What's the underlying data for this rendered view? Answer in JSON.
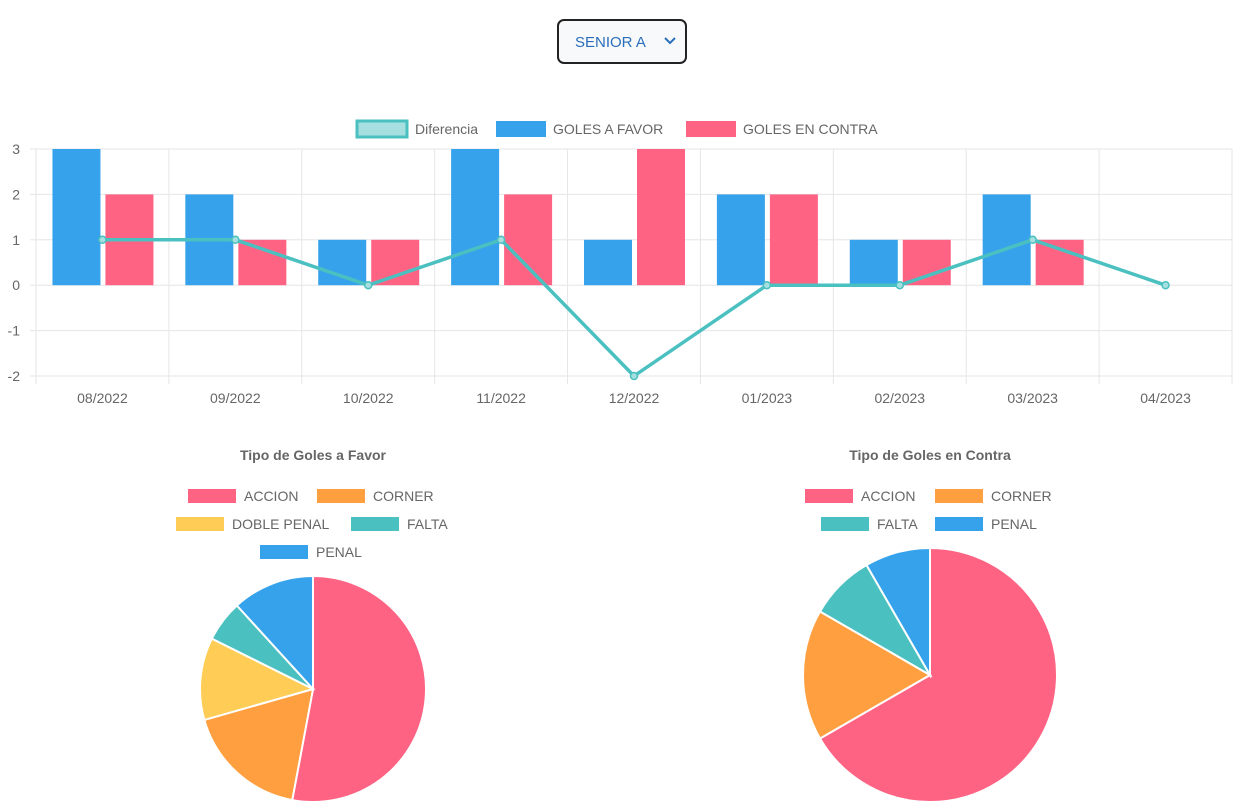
{
  "selector": {
    "value": "SENIOR A"
  },
  "colors": {
    "blue": "#36a2eb",
    "pink": "#ff6384",
    "orange": "#ff9f40",
    "yellow": "#ffcd56",
    "teal": "#4bc0c0",
    "teal_fill": "#a5dfdf",
    "grid": "#e6e6e6",
    "text": "#666666"
  },
  "chart_data": [
    {
      "type": "bar",
      "categories": [
        "08/2022",
        "09/2022",
        "10/2022",
        "11/2022",
        "12/2022",
        "01/2023",
        "02/2023",
        "03/2023",
        "04/2023"
      ],
      "series": [
        {
          "name": "Diferencia",
          "type": "line",
          "values": [
            1,
            1,
            0,
            1,
            -2,
            0,
            0,
            1,
            0
          ]
        },
        {
          "name": "GOLES A FAVOR",
          "type": "bar",
          "values": [
            3,
            2,
            1,
            3,
            1,
            2,
            1,
            2,
            0
          ]
        },
        {
          "name": "GOLES EN CONTRA",
          "type": "bar",
          "values": [
            2,
            1,
            1,
            2,
            3,
            2,
            1,
            1,
            0
          ]
        }
      ],
      "yticks": [
        "3",
        "2",
        "1",
        "0",
        "-1",
        "-2"
      ],
      "ylim": [
        -2,
        3
      ],
      "grid": true,
      "legend": "top"
    },
    {
      "type": "pie",
      "title": "Tipo de Goles a Favor",
      "labels": [
        "ACCION",
        "CORNER",
        "DOBLE PENAL",
        "FALTA",
        "PENAL"
      ],
      "values": [
        9,
        3,
        2,
        1,
        2
      ],
      "legend": "top"
    },
    {
      "type": "pie",
      "title": "Tipo de Goles en Contra",
      "labels": [
        "ACCION",
        "CORNER",
        "FALTA",
        "PENAL"
      ],
      "values": [
        8,
        2,
        1,
        1
      ],
      "legend": "top"
    }
  ]
}
